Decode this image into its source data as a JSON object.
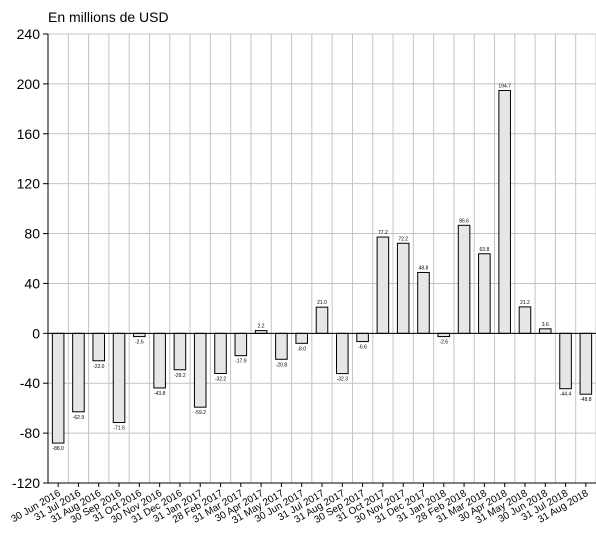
{
  "chart_data": {
    "type": "bar",
    "unit_label": "En millions de USD",
    "title": "",
    "xlabel": "",
    "ylabel": "",
    "ylim": [
      -120,
      240
    ],
    "yticks": [
      240,
      200,
      160,
      120,
      80,
      40,
      0,
      -40,
      -80,
      -120
    ],
    "ytick_labels": [
      "240",
      "200",
      "160",
      "120",
      "80",
      "40",
      "0",
      "-40",
      "-80",
      "-120"
    ],
    "grid": true,
    "categories": [
      "30 Jun 2016",
      "31 Jul 2016",
      "31 Aug 2016",
      "30 Sep 2016",
      "31 Oct 2016",
      "30 Nov 2016",
      "31 Dec 2016",
      "31 Jan 2017",
      "28 Feb 2017",
      "31 Mar 2017",
      "30 Apr 2017",
      "31 May 2017",
      "30 Jun 2017",
      "31 Jul 2017",
      "31 Aug 2017",
      "30 Sep 2017",
      "31 Oct 2017",
      "30 Nov 2017",
      "31 Dec 2017",
      "31 Jan 2018",
      "28 Feb 2018",
      "31 Mar 2018",
      "30 Apr 2018",
      "31 May 2018",
      "30 Jun 2018",
      "31 Jul 2018",
      "31 Aug 2018"
    ],
    "values": [
      -88.0,
      -62.9,
      -22.0,
      -71.5,
      -2.6,
      -43.8,
      -29.2,
      -59.2,
      -32.2,
      -17.9,
      2.2,
      -20.8,
      -8.0,
      21.0,
      -32.3,
      -6.6,
      77.2,
      72.2,
      48.8,
      -2.6,
      86.6,
      63.8,
      194.7,
      21.2,
      3.6,
      -44.4,
      -48.8
    ],
    "data_labels": [
      "-88.0",
      "-62.9",
      "-22.0",
      "-71.5",
      "-2.6",
      "-43.8",
      "-29.2",
      "-59.2",
      "-32.2",
      "-17.9",
      "2.2",
      "-20.8",
      "-8.0",
      "21.0",
      "-32.3",
      "-6.6",
      "77.2",
      "72.2",
      "48.8",
      "-2.6",
      "86.6",
      "63.8",
      "194.7",
      "21.2",
      "3.6",
      "-44.4",
      "-48.8"
    ],
    "bar_color": "#e6e6e6",
    "grid_color": "#c4c4c4"
  }
}
